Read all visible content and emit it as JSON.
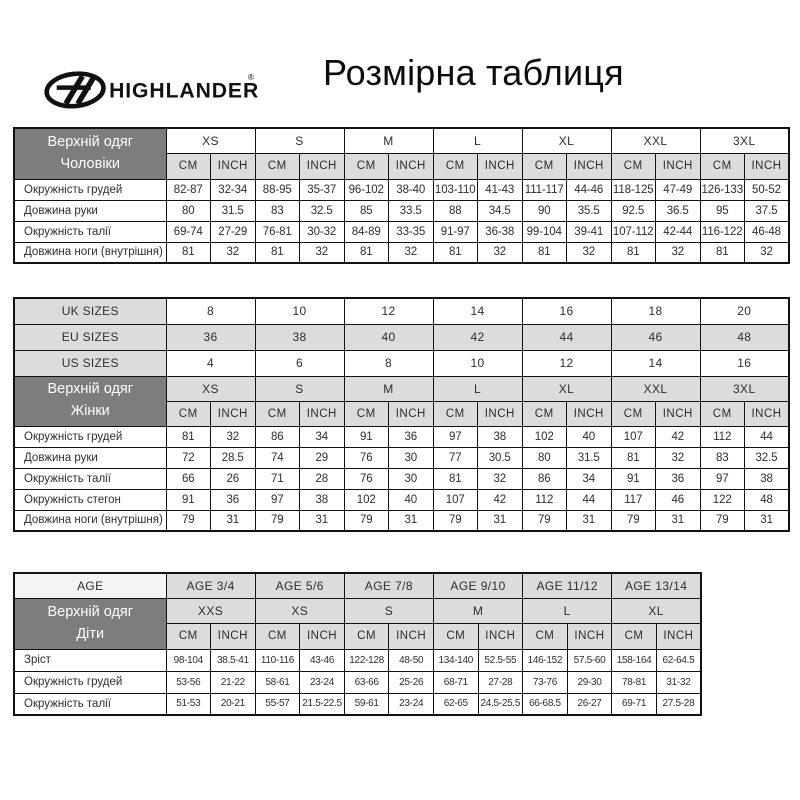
{
  "header": {
    "brand": "HIGHLANDER",
    "registered": "®",
    "title": "Розмірна таблиця"
  },
  "units": {
    "cm": "CM",
    "inch": "INCH"
  },
  "men": {
    "label_lines": [
      "Верхній одяг",
      "Чоловіки"
    ],
    "sizes": [
      "XS",
      "S",
      "M",
      "L",
      "XL",
      "XXL",
      "3XL"
    ],
    "rows": [
      {
        "label": "Окружність грудей",
        "values": [
          "82-87",
          "32-34",
          "88-95",
          "35-37",
          "96-102",
          "38-40",
          "103-110",
          "41-43",
          "111-117",
          "44-46",
          "118-125",
          "47-49",
          "126-133",
          "50-52"
        ]
      },
      {
        "label": "Довжина руки",
        "values": [
          "80",
          "31.5",
          "83",
          "32.5",
          "85",
          "33.5",
          "88",
          "34.5",
          "90",
          "35.5",
          "92.5",
          "36.5",
          "95",
          "37.5"
        ]
      },
      {
        "label": "Окружність талії",
        "values": [
          "69-74",
          "27-29",
          "76-81",
          "30-32",
          "84-89",
          "33-35",
          "91-97",
          "36-38",
          "99-104",
          "39-41",
          "107-112",
          "42-44",
          "116-122",
          "46-48"
        ]
      },
      {
        "label": "Довжина ноги (внутрішня)",
        "values": [
          "81",
          "32",
          "81",
          "32",
          "81",
          "32",
          "81",
          "32",
          "81",
          "32",
          "81",
          "32",
          "81",
          "32"
        ]
      }
    ]
  },
  "women": {
    "size_systems": [
      {
        "label": "UK SIZES",
        "shaded": false,
        "values": [
          "8",
          "10",
          "12",
          "14",
          "16",
          "18",
          "20"
        ]
      },
      {
        "label": "EU SIZES",
        "shaded": true,
        "values": [
          "36",
          "38",
          "40",
          "42",
          "44",
          "46",
          "48"
        ]
      },
      {
        "label": "US SIZES",
        "shaded": false,
        "values": [
          "4",
          "6",
          "8",
          "10",
          "12",
          "14",
          "16"
        ]
      }
    ],
    "label_lines": [
      "Верхній одяг",
      "Жінки"
    ],
    "sizes": [
      "XS",
      "S",
      "M",
      "L",
      "XL",
      "XXL",
      "3XL"
    ],
    "rows": [
      {
        "label": "Окружність грудей",
        "values": [
          "81",
          "32",
          "86",
          "34",
          "91",
          "36",
          "97",
          "38",
          "102",
          "40",
          "107",
          "42",
          "112",
          "44"
        ]
      },
      {
        "label": "Довжина руки",
        "values": [
          "72",
          "28.5",
          "74",
          "29",
          "76",
          "30",
          "77",
          "30.5",
          "80",
          "31.5",
          "81",
          "32",
          "83",
          "32.5"
        ]
      },
      {
        "label": "Окружність талії",
        "values": [
          "66",
          "26",
          "71",
          "28",
          "76",
          "30",
          "81",
          "32",
          "86",
          "34",
          "91",
          "36",
          "97",
          "38"
        ]
      },
      {
        "label": "Окружність стегон",
        "values": [
          "91",
          "36",
          "97",
          "38",
          "102",
          "40",
          "107",
          "42",
          "112",
          "44",
          "117",
          "46",
          "122",
          "48"
        ]
      },
      {
        "label": "Довжина ноги (внутрішня)",
        "values": [
          "79",
          "31",
          "79",
          "31",
          "79",
          "31",
          "79",
          "31",
          "79",
          "31",
          "79",
          "31",
          "79",
          "31"
        ]
      }
    ]
  },
  "kids": {
    "age_label": "AGE",
    "ages": [
      "AGE 3/4",
      "AGE 5/6",
      "AGE 7/8",
      "AGE 9/10",
      "AGE 11/12",
      "AGE 13/14"
    ],
    "label_lines": [
      "Верхній одяг",
      "Діти"
    ],
    "sizes": [
      "XXS",
      "XS",
      "S",
      "M",
      "L",
      "XL"
    ],
    "rows": [
      {
        "label": "Зріст",
        "values": [
          "98-104",
          "38.5-41",
          "110-116",
          "43-46",
          "122-128",
          "48-50",
          "134-140",
          "52.5-55",
          "146-152",
          "57.5-60",
          "158-164",
          "62-64.5"
        ]
      },
      {
        "label": "Окружність грудей",
        "values": [
          "53-56",
          "21-22",
          "58-61",
          "23-24",
          "63-66",
          "25-26",
          "68-71",
          "27-28",
          "73-76",
          "29-30",
          "78-81",
          "31-32"
        ]
      },
      {
        "label": "Окружність талії",
        "values": [
          "51-53",
          "20-21",
          "55-57",
          "21.5-22.5",
          "59-61",
          "23-24",
          "62-65",
          "24.5-25.5",
          "66-68.5",
          "26-27",
          "69-71",
          "27.5-28"
        ]
      }
    ]
  },
  "colors": {
    "dark_header": "#7d7d7d",
    "light_cell": "#dcdcdc",
    "age_cell": "#f4f4f4",
    "border": "#111111",
    "text": "#2e2e2e"
  }
}
